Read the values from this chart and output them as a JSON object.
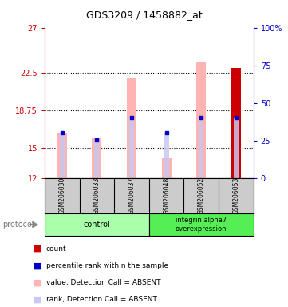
{
  "title": "GDS3209 / 1458882_at",
  "samples": [
    "GSM206030",
    "GSM206033",
    "GSM206037",
    "GSM206048",
    "GSM206052",
    "GSM206053"
  ],
  "ylim_left": [
    12,
    27
  ],
  "ylim_right": [
    0,
    100
  ],
  "yticks_left": [
    12,
    15,
    18.75,
    22.5,
    27
  ],
  "ytick_labels_left": [
    "12",
    "15",
    "18.75",
    "22.5",
    "27"
  ],
  "yticks_right": [
    0,
    25,
    50,
    75,
    100
  ],
  "ytick_labels_right": [
    "0",
    "25",
    "50",
    "75",
    "100%"
  ],
  "bar_bottom": 12,
  "value_tops": [
    16.5,
    16.0,
    22.0,
    14.0,
    23.5,
    23.0
  ],
  "rank_tops": [
    16.5,
    15.8,
    18.0,
    16.5,
    18.0,
    18.0
  ],
  "bar_color_value": "#ffb3b3",
  "bar_color_rank": "#c8c8f0",
  "dot_color_rank": "#0000cc",
  "last_bar_color": "#cc0000",
  "left_axis_color": "#cc0000",
  "right_axis_color": "#0000cc",
  "control_color": "#aaffaa",
  "integrin_color": "#55ee55",
  "sample_box_color": "#cccccc",
  "hline_positions": [
    15,
    18.75,
    22.5
  ],
  "legend_items": [
    {
      "color": "#cc0000",
      "label": "count"
    },
    {
      "color": "#0000cc",
      "label": "percentile rank within the sample"
    },
    {
      "color": "#ffb3b3",
      "label": "value, Detection Call = ABSENT"
    },
    {
      "color": "#c8c8f0",
      "label": "rank, Detection Call = ABSENT"
    }
  ]
}
